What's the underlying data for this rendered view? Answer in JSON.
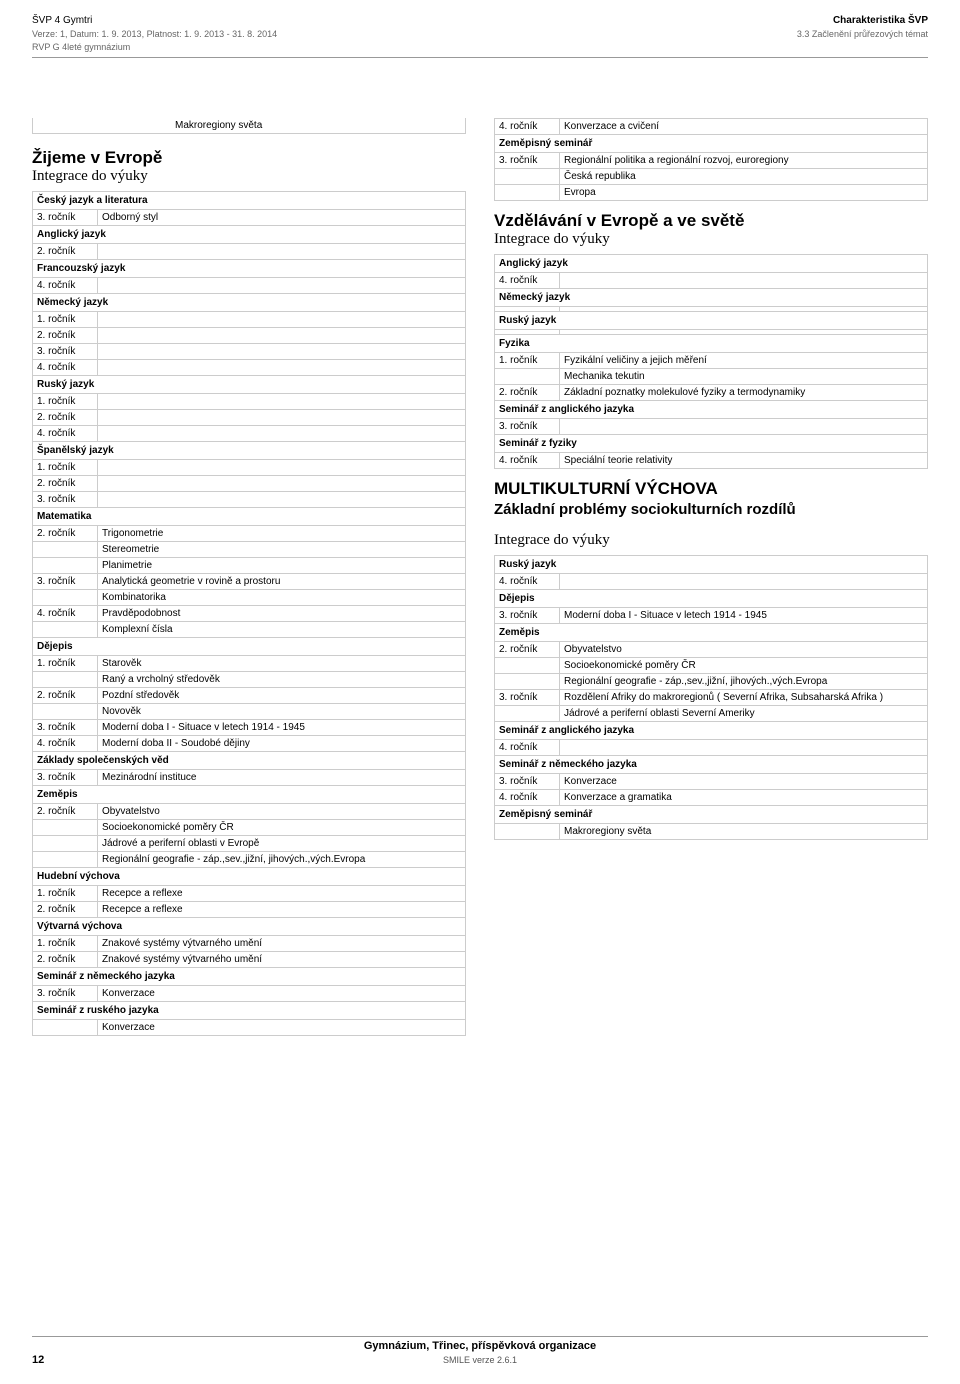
{
  "header": {
    "doc_title": "ŠVP 4 Gymtri",
    "verze_line": "Verze: 1, Datum: 1. 9. 2013, Platnost: 1. 9. 2013 - 31. 8. 2014",
    "rvp_line": "RVP G 4leté gymnázium",
    "char_title": "Charakteristika ŠVP",
    "char_sub": "3.3 Začlenění průřezových témat"
  },
  "left_column": {
    "macro_text": "Makroregiony světa",
    "section_title": "Žijeme v Evropě",
    "section_subtitle": "Integrace do výuky",
    "cesky_jazyk": {
      "header": "Český jazyk a literatura",
      "rows": [
        {
          "rocnik": "3. ročník",
          "text": "Odborný styl"
        }
      ]
    },
    "anglicky_jazyk": {
      "header": "Anglický jazyk",
      "rows": [
        {
          "rocnik": "2. ročník",
          "text": ""
        }
      ]
    },
    "francouzsky_jazyk": {
      "header": "Francouzský jazyk",
      "rows": [
        {
          "rocnik": "4. ročník",
          "text": ""
        }
      ]
    },
    "nemecky_jazyk": {
      "header": "Německý jazyk",
      "rows": [
        {
          "rocnik": "1. ročník",
          "text": ""
        },
        {
          "rocnik": "2. ročník",
          "text": ""
        },
        {
          "rocnik": "3. ročník",
          "text": ""
        },
        {
          "rocnik": "4. ročník",
          "text": ""
        }
      ]
    },
    "rusky_jazyk": {
      "header": "Ruský jazyk",
      "rows": [
        {
          "rocnik": "1. ročník",
          "text": ""
        },
        {
          "rocnik": "2. ročník",
          "text": ""
        },
        {
          "rocnik": "4. ročník",
          "text": ""
        }
      ]
    },
    "spanelsky_jazyk": {
      "header": "Španělský jazyk",
      "rows": [
        {
          "rocnik": "1. ročník",
          "text": ""
        },
        {
          "rocnik": "2. ročník",
          "text": ""
        },
        {
          "rocnik": "3. ročník",
          "text": ""
        }
      ]
    },
    "matematika": {
      "header": "Matematika",
      "rows": [
        {
          "rocnik": "2. ročník",
          "text": "Trigonometrie"
        },
        {
          "rocnik": "",
          "text": "Stereometrie"
        },
        {
          "rocnik": "",
          "text": "Planimetrie"
        },
        {
          "rocnik": "3. ročník",
          "text": "Analytická geometrie v rovině a prostoru"
        },
        {
          "rocnik": "",
          "text": "Kombinatorika"
        },
        {
          "rocnik": "4. ročník",
          "text": "Pravděpodobnost"
        },
        {
          "rocnik": "",
          "text": "Komplexní čísla"
        }
      ]
    },
    "dejepis": {
      "header": "Dějepis",
      "rows": [
        {
          "rocnik": "1. ročník",
          "text": "Starověk"
        },
        {
          "rocnik": "",
          "text": "Raný a vrcholný středověk"
        },
        {
          "rocnik": "2. ročník",
          "text": "Pozdní středověk"
        },
        {
          "rocnik": "",
          "text": "Novověk"
        },
        {
          "rocnik": "3. ročník",
          "text": "Moderní doba I - Situace v letech 1914 - 1945"
        },
        {
          "rocnik": "4. ročník",
          "text": "Moderní doba II - Soudobé dějiny"
        }
      ]
    },
    "zakladyspol": {
      "header": "Základy společenských věd",
      "rows": [
        {
          "rocnik": "3. ročník",
          "text": "Mezinárodní instituce"
        }
      ]
    },
    "zemepis": {
      "header": "Zeměpis",
      "rows": [
        {
          "rocnik": "2. ročník",
          "text": "Obyvatelstvo"
        },
        {
          "rocnik": "",
          "text": "Socioekonomické poměry ČR"
        },
        {
          "rocnik": "",
          "text": "Jádrové a periferní oblasti v Evropě"
        },
        {
          "rocnik": "",
          "text": "Regionální geografie - záp.,sev.,jižní, jihových.,vých.Evropa"
        }
      ]
    },
    "hudebni": {
      "header": "Hudební výchova",
      "rows": [
        {
          "rocnik": "1. ročník",
          "text": "Recepce a reflexe"
        },
        {
          "rocnik": "2. ročník",
          "text": "Recepce a reflexe"
        }
      ]
    },
    "vytvarna": {
      "header": "Výtvarná výchova",
      "rows": [
        {
          "rocnik": "1. ročník",
          "text": "Znakové systémy výtvarného umění"
        },
        {
          "rocnik": "2. ročník",
          "text": "Znakové systémy výtvarného umění"
        }
      ]
    },
    "seminar_nj": {
      "header": "Seminář z německého jazyka",
      "rows": [
        {
          "rocnik": "3. ročník",
          "text": "Konverzace"
        }
      ]
    },
    "seminar_rj": {
      "header": "Seminář z ruského jazyka",
      "rows": [
        {
          "rocnik": "",
          "text": "Konverzace"
        }
      ]
    }
  },
  "right_column": {
    "top_row": {
      "rocnik": "4. ročník",
      "text": "Konverzace a cvičení"
    },
    "zem_seminar": {
      "header": "Zeměpisný seminář",
      "rows": [
        {
          "rocnik": "3. ročník",
          "text": "Regionální politika a regionální rozvoj, euroregiony"
        },
        {
          "rocnik": "",
          "text": "Česká republika"
        },
        {
          "rocnik": "",
          "text": "Evropa"
        }
      ]
    },
    "vzdelavani_title": "Vzdělávání v Evropě a ve světě",
    "vzdelavani_subtitle": "Integrace do výuky",
    "anglicky": {
      "header": "Anglický jazyk",
      "rows": [
        {
          "rocnik": "4. ročník",
          "text": ""
        }
      ]
    },
    "nemecky": {
      "header": "Německý jazyk",
      "rows": [
        {
          "rocnik": "",
          "text": ""
        }
      ]
    },
    "rusky": {
      "header": "Ruský jazyk",
      "rows": [
        {
          "rocnik": "",
          "text": ""
        }
      ]
    },
    "fyzika": {
      "header": "Fyzika",
      "rows": [
        {
          "rocnik": "1. ročník",
          "text": "Fyzikální veličiny a jejich měření"
        },
        {
          "rocnik": "",
          "text": "Mechanika tekutin"
        },
        {
          "rocnik": "2. ročník",
          "text": "Základní poznatky molekulové fyziky a termodynamiky"
        }
      ]
    },
    "seminar_aj": {
      "header": "Seminář z anglického jazyka",
      "rows": [
        {
          "rocnik": "3. ročník",
          "text": ""
        }
      ]
    },
    "seminar_fyz": {
      "header": "Seminář z fyziky",
      "rows": [
        {
          "rocnik": "4. ročník",
          "text": "Speciální teorie relativity"
        }
      ]
    },
    "multi_title": "MULTIKULTURNÍ VÝCHOVA",
    "multi_subtitle": "Základní problémy sociokulturních rozdílů",
    "multi_integrace": "Integrace do výuky",
    "mk_rusky": {
      "header": "Ruský jazyk",
      "rows": [
        {
          "rocnik": "4. ročník",
          "text": ""
        }
      ]
    },
    "mk_dejepis": {
      "header": "Dějepis",
      "rows": [
        {
          "rocnik": "3. ročník",
          "text": "Moderní doba I - Situace v letech 1914 - 1945"
        }
      ]
    },
    "mk_zemepis": {
      "header": "Zeměpis",
      "rows": [
        {
          "rocnik": "2. ročník",
          "text": "Obyvatelstvo"
        },
        {
          "rocnik": "",
          "text": "Socioekonomické poměry ČR"
        },
        {
          "rocnik": "",
          "text": "Regionální geografie - záp.,sev.,jižní, jihových.,vých.Evropa"
        },
        {
          "rocnik": "3. ročník",
          "text": "Rozdělení Afriky do makroregionů ( Severní Afrika, Subsaharská Afrika )"
        },
        {
          "rocnik": "",
          "text": "Jádrové a periferní oblasti Severní Ameriky"
        }
      ]
    },
    "mk_seminar_aj": {
      "header": "Seminář z anglického jazyka",
      "rows": [
        {
          "rocnik": "4. ročník",
          "text": ""
        }
      ]
    },
    "mk_seminar_nj": {
      "header": "Seminář z německého jazyka",
      "rows": [
        {
          "rocnik": "3. ročník",
          "text": "Konverzace"
        },
        {
          "rocnik": "4. ročník",
          "text": "Konverzace a gramatika"
        }
      ]
    },
    "mk_zem_seminar": {
      "header": "Zeměpisný seminář",
      "rows": [
        {
          "rocnik": "",
          "text": "Makroregiony světa"
        }
      ]
    }
  },
  "footer": {
    "school": "Gymnázium, Třinec, příspěvková organizace",
    "page": "12",
    "version": "SMILE verze 2.6.1"
  },
  "styles": {
    "font_family": "Arial, Helvetica, sans-serif",
    "text_color": "#000000",
    "border_color": "#cccccc",
    "header_border": "#999999",
    "muted_color": "#666666"
  }
}
